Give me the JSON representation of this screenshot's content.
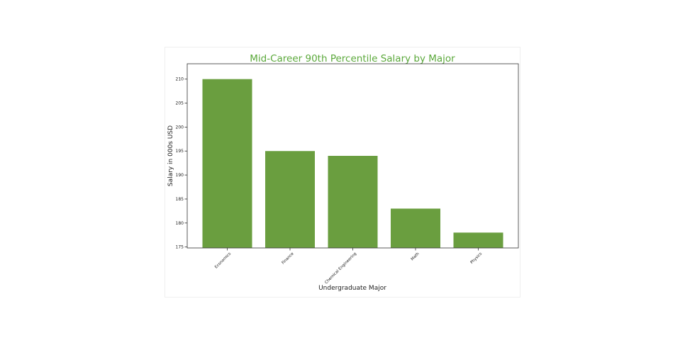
{
  "chart_data": {
    "type": "bar",
    "title": "Mid-Career 90th Percentile Salary by Major",
    "xlabel": "Undergraduate Major",
    "ylabel": "Salary in 000s USD",
    "categories": [
      "Economics",
      "Finance",
      "Chemical Engineering",
      "Math",
      "Physics"
    ],
    "values": [
      210,
      195,
      194,
      183,
      178
    ],
    "ylim": [
      174.8,
      213.2
    ],
    "yticks": [
      175,
      180,
      185,
      190,
      195,
      200,
      205,
      210
    ],
    "ytick_labels": [
      "175",
      "180",
      "185",
      "190",
      "195",
      "200",
      "205",
      "210"
    ],
    "grid": false,
    "legend": "none",
    "colors": {
      "bar": "#6a9e3f",
      "title": "#5aa83a",
      "text": "#222222"
    }
  }
}
